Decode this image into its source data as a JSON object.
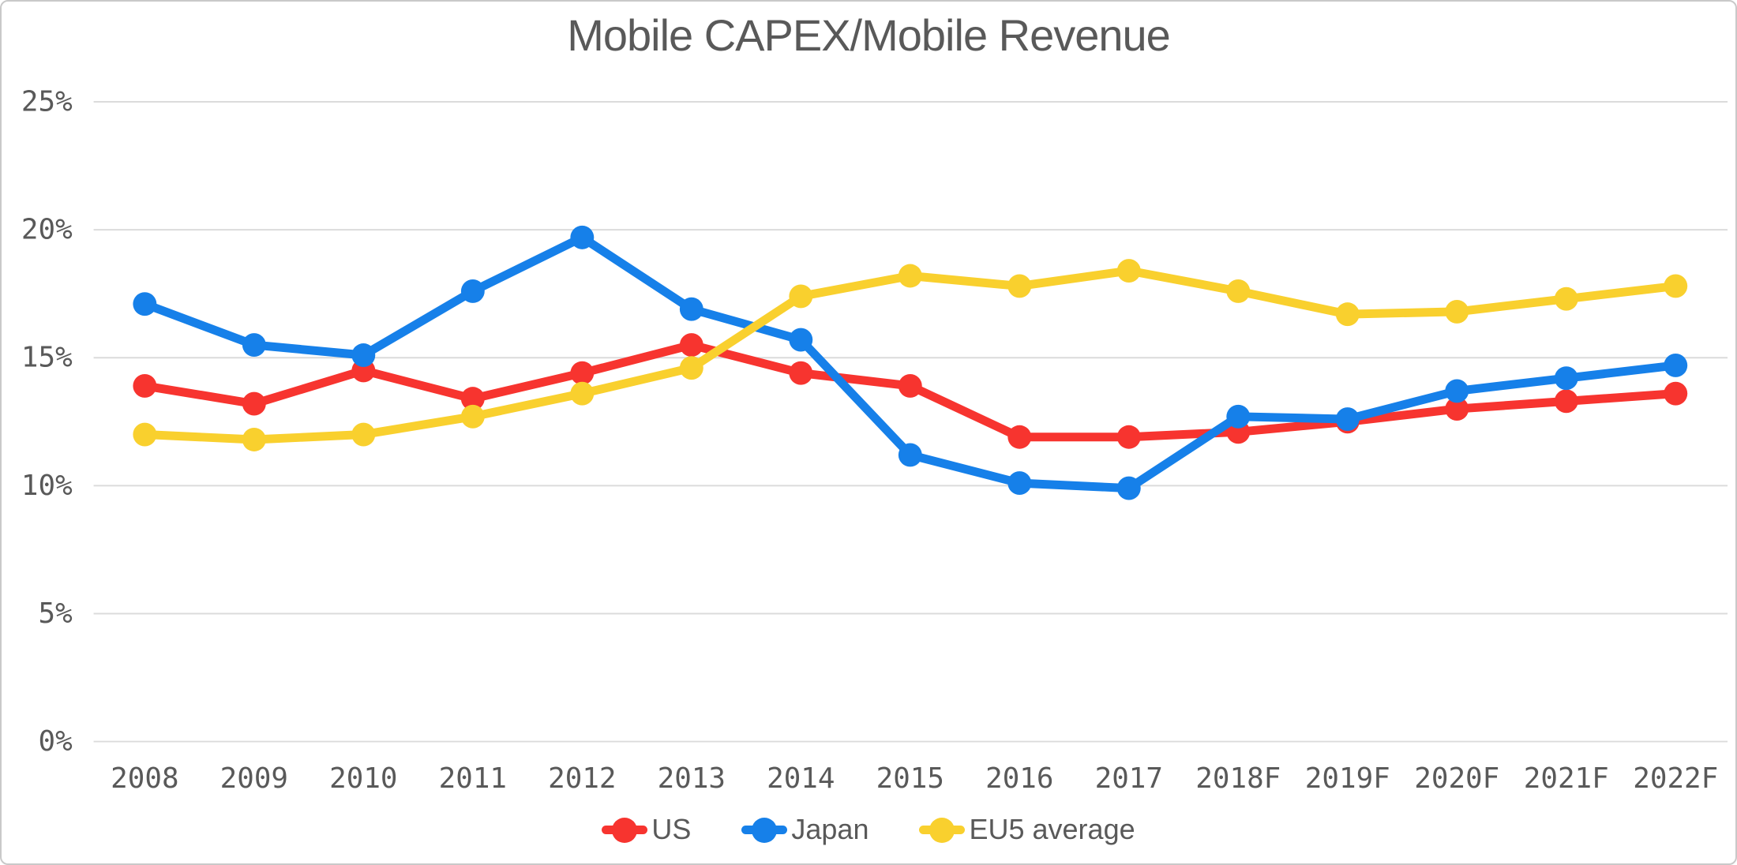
{
  "title": "Mobile CAPEX/Mobile Revenue",
  "styles": {
    "text_color": "#595959",
    "gridline_color": "#dbdbdb",
    "frame_border_color": "#c9c9c9",
    "background": "#ffffff"
  },
  "chart_data": {
    "type": "line",
    "title": "Mobile CAPEX/Mobile Revenue",
    "categories": [
      "2008",
      "2009",
      "2010",
      "2011",
      "2012",
      "2013",
      "2014",
      "2015",
      "2016",
      "2017",
      "2018F",
      "2019F",
      "2020F",
      "2021F",
      "2022F"
    ],
    "unit": "%",
    "grid": true,
    "legend_position": "bottom",
    "ylim": [
      0,
      25
    ],
    "y_ticks": [
      {
        "value": 0,
        "label": "0%"
      },
      {
        "value": 5,
        "label": "5%"
      },
      {
        "value": 10,
        "label": "10%"
      },
      {
        "value": 15,
        "label": "15%"
      },
      {
        "value": 20,
        "label": "20%"
      },
      {
        "value": 25,
        "label": "25%"
      }
    ],
    "series": [
      {
        "name": "US",
        "color": "#F7342F",
        "values": [
          13.9,
          13.2,
          14.5,
          13.4,
          14.4,
          15.5,
          14.4,
          13.9,
          11.9,
          11.9,
          12.1,
          12.5,
          13.0,
          13.3,
          13.6
        ]
      },
      {
        "name": "Japan",
        "color": "#1680E9",
        "values": [
          17.1,
          15.5,
          15.1,
          17.6,
          19.7,
          16.9,
          15.7,
          11.2,
          10.1,
          9.9,
          12.7,
          12.6,
          13.7,
          14.2,
          14.7
        ]
      },
      {
        "name": "EU5 average",
        "color": "#F9D02E",
        "values": [
          12.0,
          11.8,
          12.0,
          12.7,
          13.6,
          14.6,
          17.4,
          18.2,
          17.8,
          18.4,
          17.6,
          16.7,
          16.8,
          17.3,
          17.8
        ]
      }
    ]
  }
}
